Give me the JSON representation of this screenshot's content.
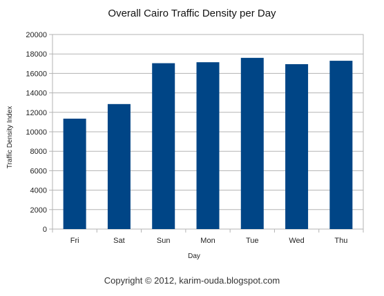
{
  "chart_data": {
    "type": "bar",
    "title": "Overall Cairo Traffic Density per Day",
    "xlabel": "Day",
    "ylabel": "Traffic Density Index",
    "categories": [
      "Fri",
      "Sat",
      "Sun",
      "Mon",
      "Tue",
      "Wed",
      "Thu"
    ],
    "values": [
      11350,
      12850,
      17050,
      17150,
      17600,
      16950,
      17300
    ],
    "ylim": [
      0,
      20000
    ],
    "yticks": [
      0,
      2000,
      4000,
      6000,
      8000,
      10000,
      12000,
      14000,
      16000,
      18000,
      20000
    ],
    "grid": true,
    "legend": "none",
    "bar_color": "#004586"
  },
  "footer": {
    "copyright": "Copyright © 2012, karim-ouda.blogspot.com"
  }
}
